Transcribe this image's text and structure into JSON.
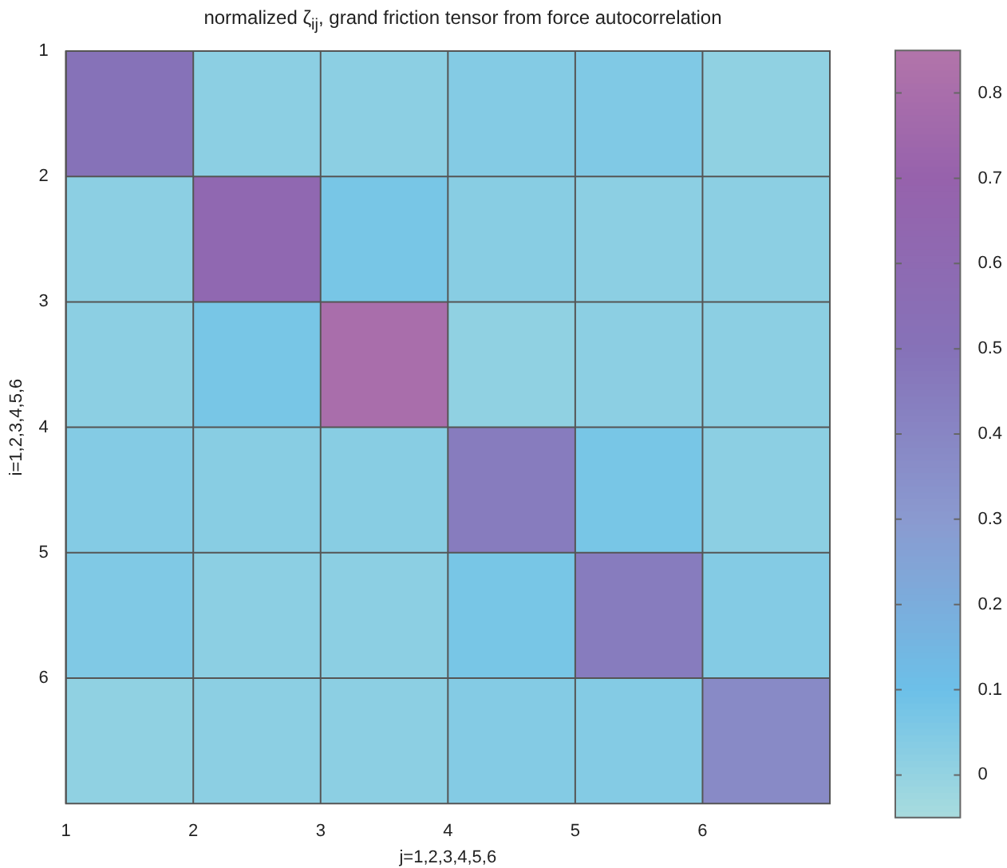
{
  "chart_data": {
    "type": "heatmap",
    "title": "normalized ζ$_{ij}$, grand friction tensor from force autocorrelation",
    "xlabel": "j=1,2,3,4,5,6",
    "ylabel": "i=1,2,3,4,5,6",
    "xlim": [
      1,
      7
    ],
    "xticks": [
      1,
      2,
      3,
      4,
      5,
      6
    ],
    "ylim": [
      7,
      1
    ],
    "yticks": [
      1,
      2,
      3,
      4,
      5,
      6
    ],
    "cells": [
      [
        0.5,
        0.02,
        0.02,
        0.04,
        0.05,
        0.01
      ],
      [
        0.02,
        0.62,
        0.07,
        0.03,
        0.02,
        0.02
      ],
      [
        0.02,
        0.07,
        0.8,
        0.01,
        0.02,
        0.02
      ],
      [
        0.04,
        0.03,
        0.03,
        0.45,
        0.07,
        0.02
      ],
      [
        0.05,
        0.02,
        0.02,
        0.07,
        0.45,
        0.04
      ],
      [
        0.01,
        0.02,
        0.02,
        0.04,
        0.04,
        0.38
      ]
    ],
    "clim": [
      -0.05,
      0.85
    ],
    "cticks": [
      0,
      0.1,
      0.2,
      0.3,
      0.4,
      0.5,
      0.6,
      0.7,
      0.8
    ],
    "grid": true
  }
}
